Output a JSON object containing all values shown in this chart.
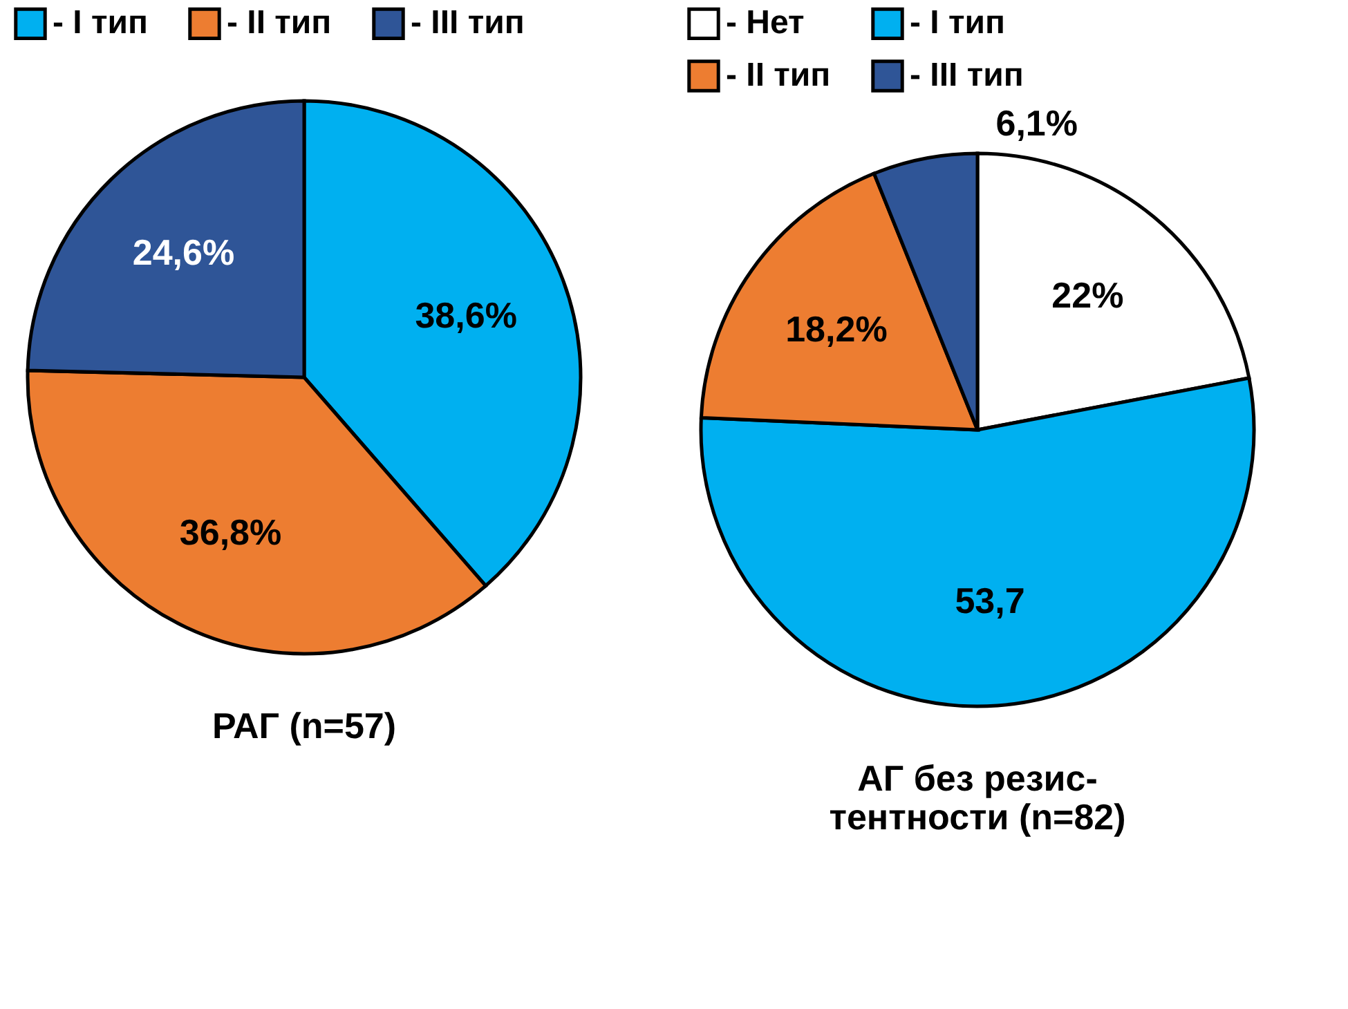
{
  "chart_data": [
    {
      "type": "pie",
      "title": "РАГ (n=57)",
      "categories": [
        "- I тип",
        "- II тип",
        "- III тип"
      ],
      "values": [
        38.6,
        36.8,
        24.6
      ],
      "colors": [
        "#00b0f0",
        "#ed7d31",
        "#2f5597"
      ],
      "value_labels": [
        "38,6%",
        "36,8%",
        "24,6%"
      ],
      "legend": "top"
    },
    {
      "type": "pie",
      "title": "АГ без резис-\nтентности (n=82)",
      "categories": [
        "- Нет",
        "- I тип",
        "- II тип",
        "- III тип"
      ],
      "values": [
        22,
        53.7,
        18.2,
        6.1
      ],
      "colors": [
        "#ffffff",
        "#00b0f0",
        "#ed7d31",
        "#2f5597"
      ],
      "value_labels": [
        "22%",
        "53,7",
        "18,2%",
        "6,1%"
      ],
      "legend": "top"
    }
  ]
}
